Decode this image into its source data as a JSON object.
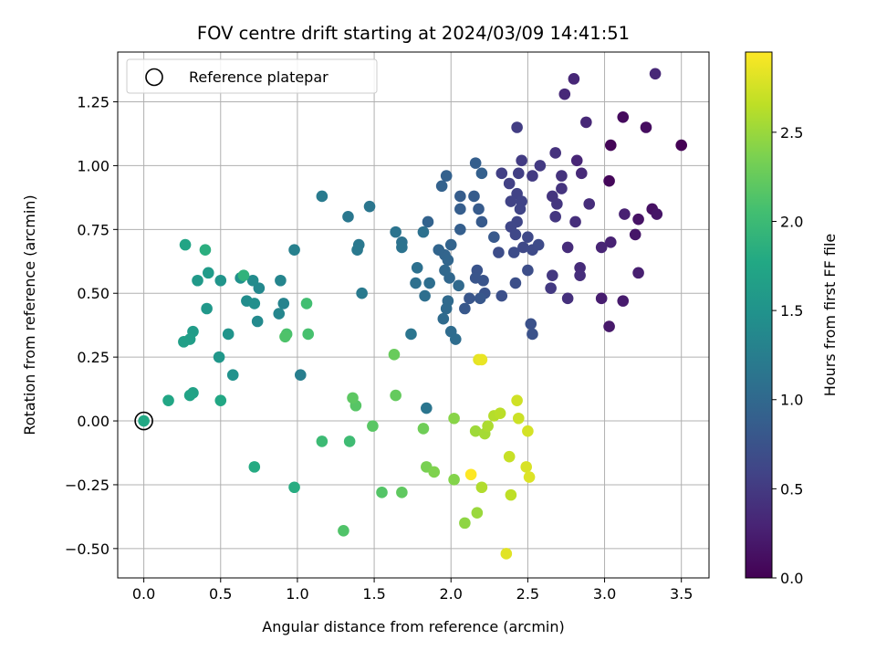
{
  "chart_data": {
    "type": "scatter",
    "title": "FOV centre drift starting at 2024/03/09 14:41:51",
    "xlabel": "Angular distance from reference (arcmin)",
    "ylabel": "Rotation from reference (arcmin)",
    "xlim": [
      -0.17,
      3.68
    ],
    "ylim": [
      -0.615,
      1.445
    ],
    "xticks": [
      0.0,
      0.5,
      1.0,
      1.5,
      2.0,
      2.5,
      3.0,
      3.5
    ],
    "xtick_labels": [
      "0.0",
      "0.5",
      "1.0",
      "1.5",
      "2.0",
      "2.5",
      "3.0",
      "3.5"
    ],
    "yticks": [
      -0.5,
      -0.25,
      0.0,
      0.25,
      0.5,
      0.75,
      1.0,
      1.25
    ],
    "ytick_labels": [
      "−0.50",
      "−0.25",
      "0.00",
      "0.25",
      "0.50",
      "0.75",
      "1.00",
      "1.25"
    ],
    "grid": true,
    "legend": {
      "position": "top-left",
      "entries": [
        {
          "label": "Reference platepar",
          "marker": "open-circle"
        }
      ]
    },
    "reference_point": {
      "x": 0.0,
      "y": 0.0
    },
    "colorbar": {
      "label": "Hours from first FF file",
      "colormap": "viridis",
      "range": [
        0.0,
        2.95
      ],
      "ticks": [
        0.0,
        0.5,
        1.0,
        1.5,
        2.0,
        2.5
      ],
      "tick_labels": [
        "0.0",
        "0.5",
        "1.0",
        "1.5",
        "2.0",
        "2.5"
      ]
    },
    "points": [
      [
        3.5,
        1.08,
        0.0
      ],
      [
        3.04,
        1.08,
        0.03
      ],
      [
        3.03,
        0.94,
        0.05
      ],
      [
        3.12,
        1.19,
        0.08
      ],
      [
        3.27,
        1.15,
        0.1
      ],
      [
        3.31,
        0.83,
        0.13
      ],
      [
        3.22,
        0.79,
        0.15
      ],
      [
        3.34,
        0.81,
        0.17
      ],
      [
        3.2,
        0.73,
        0.18
      ],
      [
        3.03,
        0.37,
        0.2
      ],
      [
        3.12,
        0.47,
        0.22
      ],
      [
        2.98,
        0.48,
        0.24
      ],
      [
        3.22,
        0.58,
        0.25
      ],
      [
        3.13,
        0.81,
        0.27
      ],
      [
        3.04,
        0.7,
        0.28
      ],
      [
        2.98,
        0.68,
        0.3
      ],
      [
        2.82,
        1.02,
        0.31
      ],
      [
        2.8,
        1.34,
        0.32
      ],
      [
        2.88,
        1.17,
        0.33
      ],
      [
        3.33,
        1.36,
        0.33
      ],
      [
        2.74,
        1.28,
        0.34
      ],
      [
        2.85,
        0.97,
        0.35
      ],
      [
        2.84,
        0.6,
        0.36
      ],
      [
        2.76,
        0.68,
        0.37
      ],
      [
        2.9,
        0.85,
        0.38
      ],
      [
        2.84,
        0.57,
        0.39
      ],
      [
        2.81,
        0.78,
        0.4
      ],
      [
        2.76,
        0.48,
        0.41
      ],
      [
        2.68,
        1.05,
        0.42
      ],
      [
        2.72,
        0.96,
        0.43
      ],
      [
        2.72,
        0.91,
        0.44
      ],
      [
        2.66,
        0.88,
        0.45
      ],
      [
        2.69,
        0.85,
        0.46
      ],
      [
        2.68,
        0.8,
        0.47
      ],
      [
        2.66,
        0.57,
        0.48
      ],
      [
        2.65,
        0.52,
        0.49
      ],
      [
        2.58,
        1.0,
        0.5
      ],
      [
        2.53,
        0.96,
        0.51
      ],
      [
        2.46,
        1.02,
        0.52
      ],
      [
        2.43,
        1.15,
        0.53
      ],
      [
        2.44,
        0.97,
        0.54
      ],
      [
        2.33,
        0.97,
        0.55
      ],
      [
        2.38,
        0.93,
        0.56
      ],
      [
        2.43,
        0.89,
        0.57
      ],
      [
        2.39,
        0.86,
        0.58
      ],
      [
        2.46,
        0.86,
        0.59
      ],
      [
        2.45,
        0.83,
        0.6
      ],
      [
        2.43,
        0.78,
        0.61
      ],
      [
        2.39,
        0.76,
        0.62
      ],
      [
        2.42,
        0.73,
        0.63
      ],
      [
        2.5,
        0.72,
        0.64
      ],
      [
        2.47,
        0.68,
        0.65
      ],
      [
        2.53,
        0.67,
        0.66
      ],
      [
        2.57,
        0.69,
        0.67
      ],
      [
        2.41,
        0.66,
        0.68
      ],
      [
        2.31,
        0.66,
        0.69
      ],
      [
        2.5,
        0.59,
        0.7
      ],
      [
        2.42,
        0.54,
        0.71
      ],
      [
        2.33,
        0.49,
        0.72
      ],
      [
        2.52,
        0.38,
        0.73
      ],
      [
        2.53,
        0.34,
        0.74
      ],
      [
        2.22,
        0.5,
        0.75
      ],
      [
        2.21,
        0.55,
        0.76
      ],
      [
        2.17,
        0.59,
        0.77
      ],
      [
        2.16,
        0.56,
        0.78
      ],
      [
        2.12,
        0.48,
        0.79
      ],
      [
        2.19,
        0.48,
        0.8
      ],
      [
        2.09,
        0.44,
        0.81
      ],
      [
        2.28,
        0.72,
        0.82
      ],
      [
        2.2,
        0.78,
        0.83
      ],
      [
        2.18,
        0.83,
        0.84
      ],
      [
        2.15,
        0.88,
        0.85
      ],
      [
        2.06,
        0.88,
        0.86
      ],
      [
        2.06,
        0.83,
        0.87
      ],
      [
        2.06,
        0.75,
        0.88
      ],
      [
        2.16,
        1.01,
        0.89
      ],
      [
        2.2,
        0.97,
        0.9
      ],
      [
        1.97,
        0.96,
        0.91
      ],
      [
        1.94,
        0.92,
        0.92
      ],
      [
        1.85,
        0.78,
        0.93
      ],
      [
        2.0,
        0.69,
        0.94
      ],
      [
        1.96,
        0.65,
        0.95
      ],
      [
        1.92,
        0.67,
        0.96
      ],
      [
        1.98,
        0.63,
        0.97
      ],
      [
        1.99,
        0.56,
        0.98
      ],
      [
        1.96,
        0.59,
        0.99
      ],
      [
        2.05,
        0.53,
        1.0
      ],
      [
        1.98,
        0.47,
        1.01
      ],
      [
        1.97,
        0.44,
        1.02
      ],
      [
        1.95,
        0.4,
        1.03
      ],
      [
        2.0,
        0.35,
        1.04
      ],
      [
        2.03,
        0.32,
        1.05
      ],
      [
        1.86,
        0.54,
        1.06
      ],
      [
        1.83,
        0.49,
        1.07
      ],
      [
        1.77,
        0.54,
        1.08
      ],
      [
        1.78,
        0.6,
        1.09
      ],
      [
        1.82,
        0.74,
        1.1
      ],
      [
        1.68,
        0.7,
        1.11
      ],
      [
        1.68,
        0.68,
        1.12
      ],
      [
        1.64,
        0.74,
        1.13
      ],
      [
        1.74,
        0.34,
        1.14
      ],
      [
        1.84,
        0.05,
        1.15
      ],
      [
        1.47,
        0.84,
        1.16
      ],
      [
        1.33,
        0.8,
        1.17
      ],
      [
        1.4,
        0.69,
        1.18
      ],
      [
        1.39,
        0.67,
        1.19
      ],
      [
        1.42,
        0.5,
        1.2
      ],
      [
        1.16,
        0.88,
        1.22
      ],
      [
        1.02,
        0.18,
        1.25
      ],
      [
        0.98,
        0.67,
        1.28
      ],
      [
        0.91,
        0.46,
        1.31
      ],
      [
        0.89,
        0.55,
        1.33
      ],
      [
        0.88,
        0.42,
        1.35
      ],
      [
        0.75,
        0.52,
        1.37
      ],
      [
        0.74,
        0.39,
        1.39
      ],
      [
        0.71,
        0.55,
        1.41
      ],
      [
        0.67,
        0.47,
        1.43
      ],
      [
        0.72,
        0.46,
        1.45
      ],
      [
        0.63,
        0.56,
        1.47
      ],
      [
        0.58,
        0.18,
        1.49
      ],
      [
        0.55,
        0.34,
        1.51
      ],
      [
        0.5,
        0.55,
        1.53
      ],
      [
        0.49,
        0.25,
        1.55
      ],
      [
        0.41,
        0.44,
        1.56
      ],
      [
        0.35,
        0.55,
        1.58
      ],
      [
        0.42,
        0.58,
        1.6
      ],
      [
        0.32,
        0.35,
        1.62
      ],
      [
        0.3,
        0.32,
        1.64
      ],
      [
        0.26,
        0.31,
        1.66
      ],
      [
        0.32,
        0.11,
        1.68
      ],
      [
        0.3,
        0.1,
        1.7
      ],
      [
        0.27,
        0.69,
        1.72
      ],
      [
        0.16,
        0.08,
        1.74
      ],
      [
        0.5,
        0.08,
        1.76
      ],
      [
        0.72,
        -0.18,
        1.8
      ],
      [
        0.98,
        -0.26,
        1.82
      ],
      [
        0.4,
        0.67,
        1.85
      ],
      [
        0.65,
        0.57,
        1.9
      ],
      [
        1.16,
        -0.08,
        2.0
      ],
      [
        1.34,
        -0.08,
        2.02
      ],
      [
        1.06,
        0.46,
        2.05
      ],
      [
        1.07,
        0.34,
        2.08
      ],
      [
        0.93,
        0.34,
        2.1
      ],
      [
        0.92,
        0.33,
        2.12
      ],
      [
        1.3,
        -0.43,
        2.13
      ],
      [
        1.55,
        -0.28,
        2.15
      ],
      [
        1.38,
        0.06,
        2.17
      ],
      [
        1.49,
        -0.02,
        2.18
      ],
      [
        1.36,
        0.09,
        2.2
      ],
      [
        1.68,
        -0.28,
        2.22
      ],
      [
        1.64,
        0.1,
        2.24
      ],
      [
        1.63,
        0.26,
        2.26
      ],
      [
        1.82,
        -0.03,
        2.3
      ],
      [
        1.84,
        -0.18,
        2.35
      ],
      [
        1.89,
        -0.2,
        2.38
      ],
      [
        2.02,
        -0.23,
        2.4
      ],
      [
        2.02,
        0.01,
        2.42
      ],
      [
        2.09,
        -0.4,
        2.45
      ],
      [
        2.17,
        -0.36,
        2.5
      ],
      [
        2.16,
        -0.04,
        2.52
      ],
      [
        2.22,
        -0.05,
        2.55
      ],
      [
        2.24,
        -0.02,
        2.58
      ],
      [
        2.2,
        -0.26,
        2.6
      ],
      [
        2.28,
        0.02,
        2.62
      ],
      [
        2.32,
        0.03,
        2.64
      ],
      [
        2.39,
        -0.29,
        2.66
      ],
      [
        2.38,
        -0.14,
        2.7
      ],
      [
        2.44,
        0.01,
        2.72
      ],
      [
        2.43,
        0.08,
        2.74
      ],
      [
        2.5,
        -0.04,
        2.76
      ],
      [
        2.49,
        -0.18,
        2.78
      ],
      [
        2.51,
        -0.22,
        2.8
      ],
      [
        2.36,
        -0.52,
        2.82
      ],
      [
        2.18,
        0.24,
        2.84
      ],
      [
        2.2,
        0.24,
        2.86
      ],
      [
        2.13,
        -0.21,
        2.95
      ]
    ]
  }
}
